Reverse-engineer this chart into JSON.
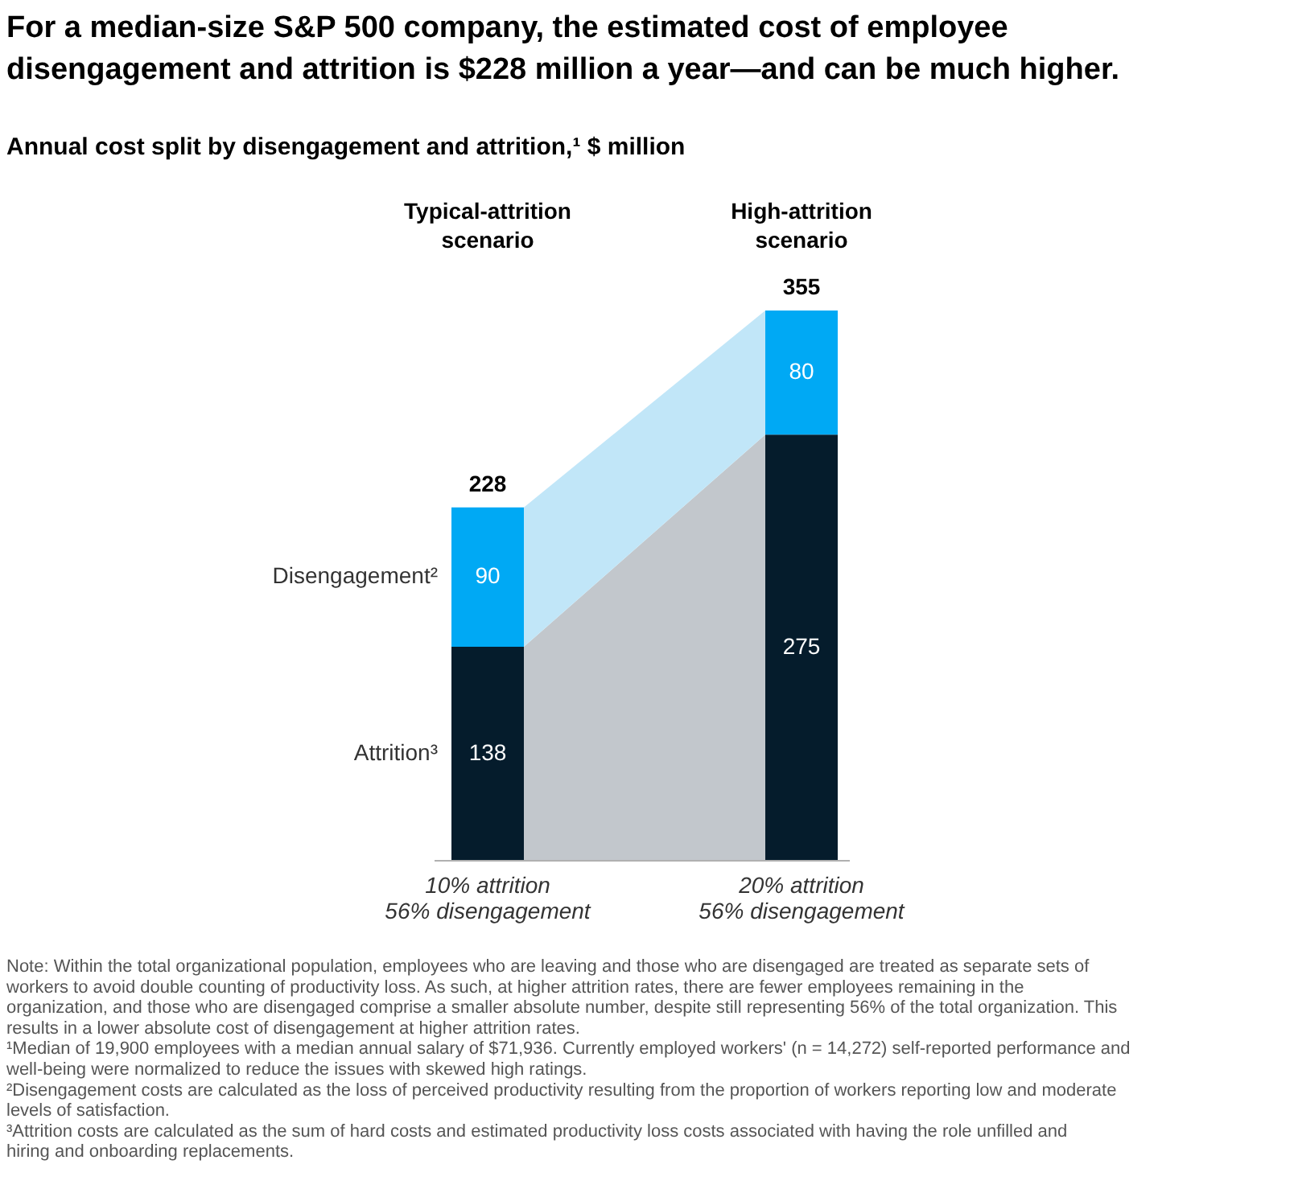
{
  "chart_data": {
    "type": "bar",
    "stacked": true,
    "data_labels": true,
    "title": "For a median-size S&P 500 company, the estimated cost of employee disengagement and attrition is $228 million a year—and can be much higher.",
    "subtitle": "Annual cost split by disengagement and attrition,¹ $ million",
    "categories": [
      "10% attrition\n56% disengagement",
      "20% attrition\n56% disengagement"
    ],
    "series": [
      {
        "name": "Attrition³",
        "color": "#051c2c",
        "values": [
          138,
          275
        ]
      },
      {
        "name": "Disengagement²",
        "color": "#00a9f4",
        "values": [
          90,
          80
        ]
      }
    ],
    "totals": [
      "228",
      "355"
    ],
    "annotations": [
      "Typical-attrition\nscenario",
      "High-attrition\nscenario",
      "Note: Within the total organizational population, employees who are leaving and those who are disengaged are treated as separate sets of workers to avoid double counting of productivity loss. As such, at higher attrition rates, there are fewer employees remaining in the organization, and those who are disengaged comprise a smaller absolute number, despite still representing 56% of the total organization. This results in a lower absolute cost of disengagement at higher attrition rates.",
      "¹Median of 19,900 employees with a median annual salary of $71,936. Currently employed workers' (n = 14,272) self-reported performance and well-being were normalized to reduce the issues with skewed high ratings.",
      "²Disengagement costs are calculated as the loss of perceived productivity resulting from the proportion of workers reporting low and moderate levels of satisfaction.",
      "³Attrition costs are calculated as the sum of hard costs and estimated productivity loss costs associated with having the role unfilled and hiring and onboarding replacements."
    ]
  }
}
